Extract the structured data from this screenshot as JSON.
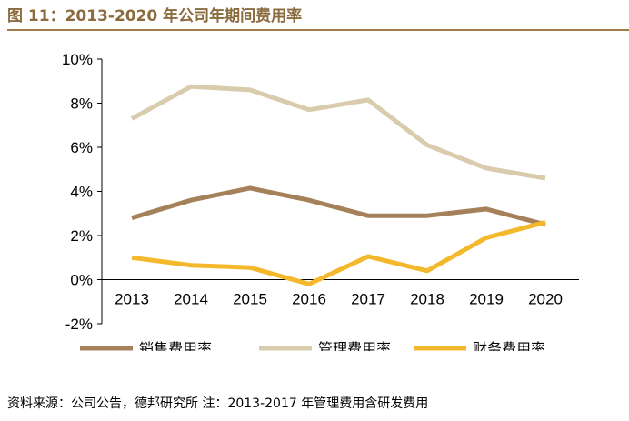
{
  "title": "图 11：2013-2020 年公司年期间费用率",
  "source": "资料来源：公司公告，德邦研究所   注：2013-2017 年管理费用含研发费用",
  "chart_data": {
    "type": "line",
    "categories": [
      "2013",
      "2014",
      "2015",
      "2016",
      "2017",
      "2018",
      "2019",
      "2020"
    ],
    "series": [
      {
        "name": "销售费用率",
        "color": "#a5815a",
        "values": [
          2.8,
          3.6,
          4.15,
          3.6,
          2.9,
          2.9,
          3.2,
          2.5
        ]
      },
      {
        "name": "管理费用率",
        "color": "#d9ccad",
        "values": [
          7.3,
          8.75,
          8.6,
          7.7,
          8.15,
          6.1,
          5.05,
          4.6
        ]
      },
      {
        "name": "财务费用率",
        "color": "#f4b82c",
        "values": [
          1.0,
          0.65,
          0.55,
          -0.2,
          1.05,
          0.4,
          1.9,
          2.6
        ]
      }
    ],
    "yticks": [
      "-2%",
      "0%",
      "2%",
      "4%",
      "6%",
      "8%",
      "10%"
    ],
    "ylim": [
      -2,
      10
    ],
    "legend_position": "bottom",
    "grid": false
  }
}
